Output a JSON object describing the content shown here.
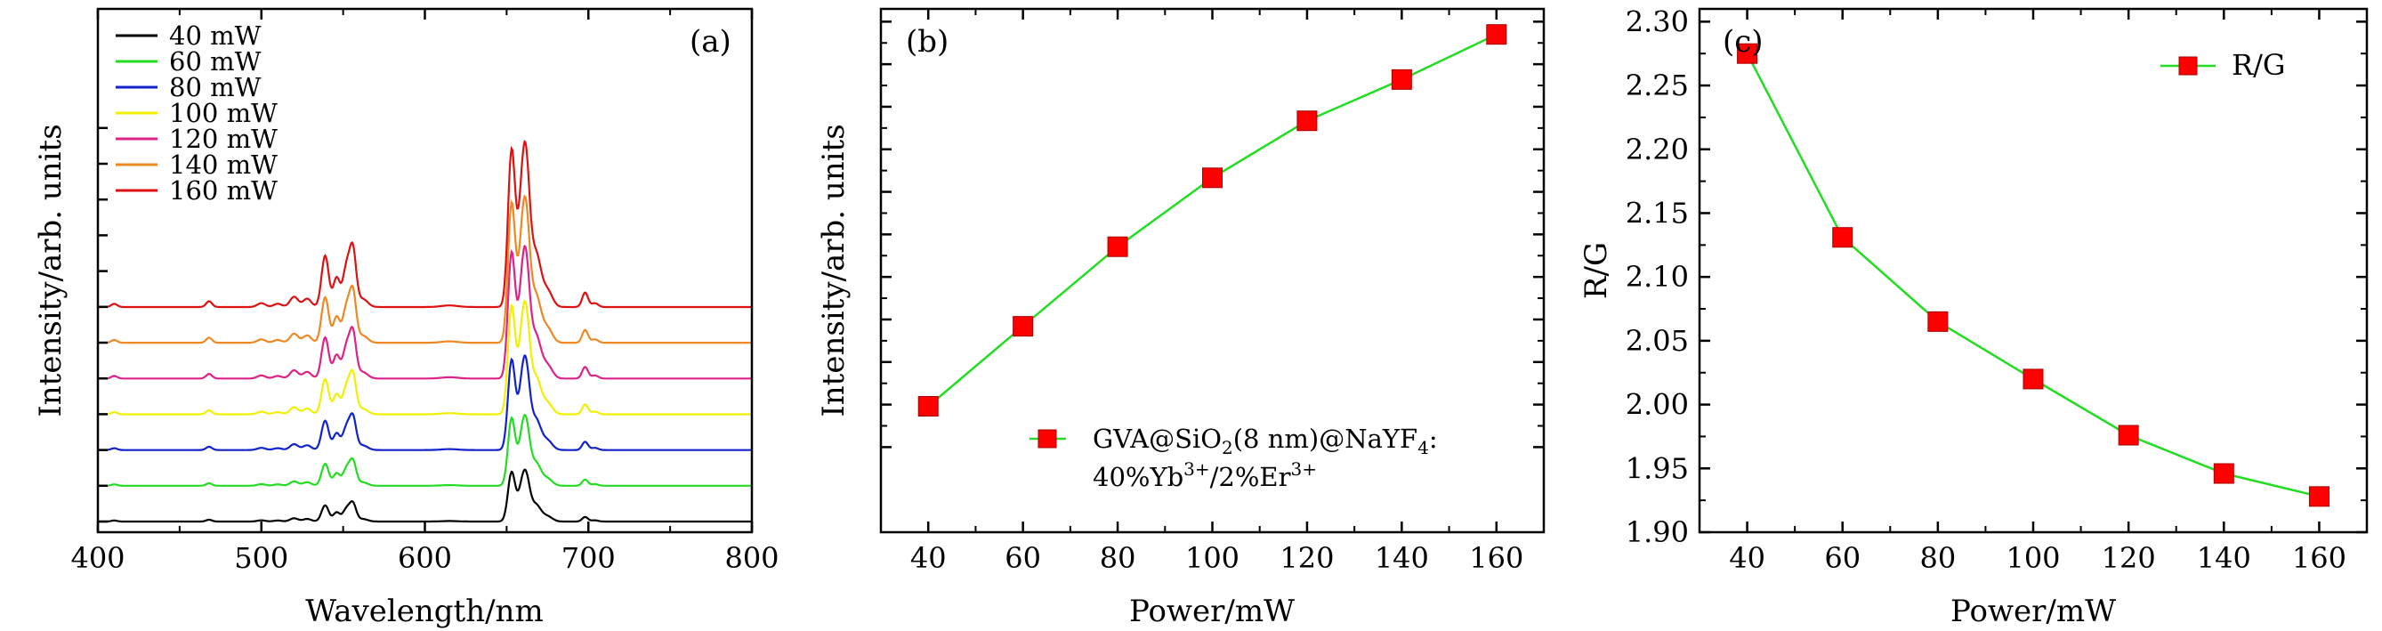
{
  "chart_data": [
    {
      "panel": "(a)",
      "type": "line",
      "xlabel": "Wavelength/nm",
      "ylabel": "Intensity/arb. units",
      "xlim": [
        400,
        800
      ],
      "xticks": [
        400,
        500,
        600,
        700,
        800
      ],
      "offset_step": 0.78,
      "peaks": [
        {
          "center": 410,
          "height": 0.1,
          "width": 1.8
        },
        {
          "center": 468,
          "height": 0.18,
          "width": 1.8
        },
        {
          "center": 500,
          "height": 0.12,
          "width": 2.5
        },
        {
          "center": 510,
          "height": 0.1,
          "width": 2.5
        },
        {
          "center": 520,
          "height": 0.32,
          "width": 2.5
        },
        {
          "center": 528,
          "height": 0.26,
          "width": 2.5
        },
        {
          "center": 539,
          "height": 1.6,
          "width": 2.2
        },
        {
          "center": 546,
          "height": 0.9,
          "width": 2.0
        },
        {
          "center": 552,
          "height": 1.2,
          "width": 2.2
        },
        {
          "center": 556,
          "height": 1.7,
          "width": 2.0
        },
        {
          "center": 562,
          "height": 0.25,
          "width": 3.0
        },
        {
          "center": 615,
          "height": 0.05,
          "width": 5.0
        },
        {
          "center": 653,
          "height": 4.8,
          "width": 2.2
        },
        {
          "center": 659,
          "height": 2.4,
          "width": 2.5
        },
        {
          "center": 662,
          "height": 3.6,
          "width": 2.4
        },
        {
          "center": 668,
          "height": 1.6,
          "width": 3.0
        },
        {
          "center": 675,
          "height": 0.5,
          "width": 3.0
        },
        {
          "center": 698,
          "height": 0.45,
          "width": 1.8
        },
        {
          "center": 704,
          "height": 0.12,
          "width": 2.0
        }
      ],
      "series": [
        {
          "name": "40 mW",
          "color": "#000000",
          "scale": 0.22
        },
        {
          "name": "60 mW",
          "color": "#22dd22",
          "scale": 0.3
        },
        {
          "name": "80 mW",
          "color": "#1122cc",
          "scale": 0.4
        },
        {
          "name": "100 mW",
          "color": "#f0f000",
          "scale": 0.48
        },
        {
          "name": "120 mW",
          "color": "#dd2288",
          "scale": 0.56
        },
        {
          "name": "140 mW",
          "color": "#ee8822",
          "scale": 0.62
        },
        {
          "name": "160 mW",
          "color": "#dd1111",
          "scale": 0.7
        }
      ]
    },
    {
      "panel": "(b)",
      "type": "line",
      "xlabel": "Power/mW",
      "ylabel": "Intensity/arb. units",
      "x": [
        40,
        60,
        80,
        100,
        120,
        140,
        160
      ],
      "y": [
        0.96,
        2.84,
        4.71,
        6.33,
        7.67,
        8.64,
        9.7
      ],
      "xlim": [
        30,
        170
      ],
      "ylim": [
        -2.0,
        10.3
      ],
      "xticks": [
        40,
        60,
        80,
        100,
        120,
        140,
        160
      ],
      "yticks": [
        0,
        1,
        2,
        3,
        4,
        5,
        6,
        7,
        8,
        9,
        10
      ],
      "line_color": "#22dd22",
      "marker_color": "#ff0000",
      "legend": {
        "line1": "GVA@SiO",
        "sub1": "2",
        "mid1": "(8 nm)@NaYF",
        "sub2": "4",
        "end1": ":",
        "line2a": "40%Yb",
        "sup1": "3+",
        "line2b": "/2%Er",
        "sup2": "3+"
      }
    },
    {
      "panel": "(c)",
      "type": "line",
      "xlabel": "Power/mW",
      "ylabel": "R/G",
      "x": [
        40,
        60,
        80,
        100,
        120,
        140,
        160
      ],
      "y": [
        2.275,
        2.131,
        2.065,
        2.02,
        1.976,
        1.946,
        1.928
      ],
      "xlim": [
        30,
        170
      ],
      "ylim": [
        1.9,
        2.31
      ],
      "xticks": [
        40,
        60,
        80,
        100,
        120,
        140,
        160
      ],
      "yticks": [
        1.9,
        1.95,
        2.0,
        2.05,
        2.1,
        2.15,
        2.2,
        2.25,
        2.3
      ],
      "ytick_labels": [
        "1.90",
        "1.95",
        "2.00",
        "2.05",
        "2.10",
        "2.15",
        "2.20",
        "2.25",
        "2.30"
      ],
      "line_color": "#22dd22",
      "marker_color": "#ff0000",
      "legend": "R/G"
    }
  ]
}
